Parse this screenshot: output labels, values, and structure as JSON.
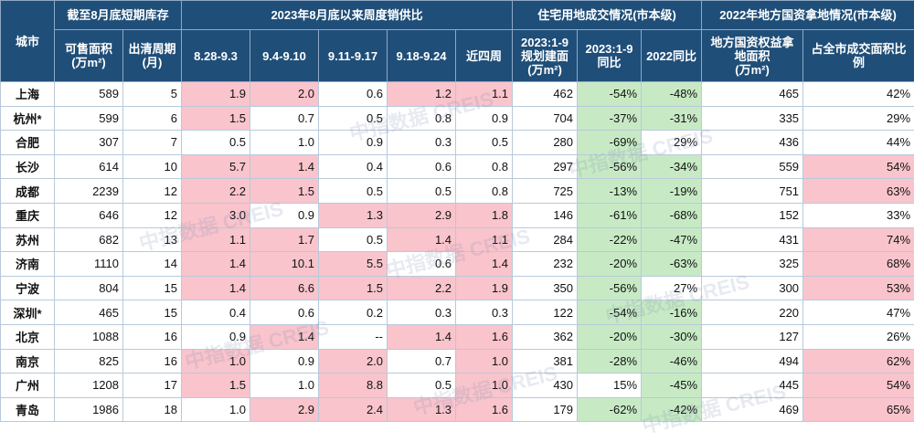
{
  "headers": {
    "city": "城市",
    "group_inventory": "截至8月底短期库存",
    "group_weekly": "2023年8月底以来周度销供比",
    "group_land": "住宅用地成交情况(市本级)",
    "group_state": "2022年地方国资拿地情况(市本级)",
    "available_area": "可售面积",
    "available_area_unit": "(万m²)",
    "clearance_cycle": "出清周期",
    "clearance_cycle_unit": "(月)",
    "week1": "8.28-9.3",
    "week2": "9.4-9.10",
    "week3": "9.11-9.17",
    "week4": "9.18-9.24",
    "recent4": "近四周",
    "land_area": "2023:1-9规划建面",
    "land_area_unit": "(万m²)",
    "land_yoy": "2023:1-9同比",
    "land_2022": "2022同比",
    "state_area": "地方国资权益拿地面积",
    "state_area_unit": "(万m²)",
    "state_share": "占全市成交面积比例"
  },
  "rows": [
    {
      "city": "上海",
      "area": "589",
      "cycle": "5",
      "w1": "1.9",
      "w2": "2.0",
      "w3": "0.6",
      "w4": "1.2",
      "r4": "1.1",
      "land": "462",
      "yoy": "-54%",
      "y22": "-48%",
      "sarea": "465",
      "share": "42%"
    },
    {
      "city": "杭州*",
      "area": "599",
      "cycle": "6",
      "w1": "1.5",
      "w2": "0.7",
      "w3": "0.5",
      "w4": "0.8",
      "r4": "0.9",
      "land": "704",
      "yoy": "-37%",
      "y22": "-31%",
      "sarea": "335",
      "share": "29%"
    },
    {
      "city": "合肥",
      "area": "307",
      "cycle": "7",
      "w1": "0.5",
      "w2": "1.0",
      "w3": "0.9",
      "w4": "0.3",
      "r4": "0.5",
      "land": "280",
      "yoy": "-69%",
      "y22": "29%",
      "sarea": "436",
      "share": "44%"
    },
    {
      "city": "长沙",
      "area": "614",
      "cycle": "10",
      "w1": "5.7",
      "w2": "1.4",
      "w3": "0.4",
      "w4": "0.6",
      "r4": "0.8",
      "land": "297",
      "yoy": "-56%",
      "y22": "-34%",
      "sarea": "559",
      "share": "54%"
    },
    {
      "city": "成都",
      "area": "2239",
      "cycle": "12",
      "w1": "2.2",
      "w2": "1.5",
      "w3": "0.5",
      "w4": "0.5",
      "r4": "0.8",
      "land": "725",
      "yoy": "-13%",
      "y22": "-19%",
      "sarea": "751",
      "share": "63%"
    },
    {
      "city": "重庆",
      "area": "646",
      "cycle": "12",
      "w1": "3.0",
      "w2": "0.9",
      "w3": "1.3",
      "w4": "2.9",
      "r4": "1.8",
      "land": "146",
      "yoy": "-61%",
      "y22": "-68%",
      "sarea": "152",
      "share": "33%"
    },
    {
      "city": "苏州",
      "area": "682",
      "cycle": "13",
      "w1": "1.1",
      "w2": "1.7",
      "w3": "0.5",
      "w4": "1.4",
      "r4": "1.1",
      "land": "284",
      "yoy": "-22%",
      "y22": "-47%",
      "sarea": "431",
      "share": "74%"
    },
    {
      "city": "济南",
      "area": "1110",
      "cycle": "14",
      "w1": "1.4",
      "w2": "10.1",
      "w3": "5.5",
      "w4": "0.6",
      "r4": "1.4",
      "land": "232",
      "yoy": "-20%",
      "y22": "-63%",
      "sarea": "325",
      "share": "68%"
    },
    {
      "city": "宁波",
      "area": "804",
      "cycle": "15",
      "w1": "1.4",
      "w2": "6.6",
      "w3": "1.5",
      "w4": "2.2",
      "r4": "1.9",
      "land": "350",
      "yoy": "-56%",
      "y22": "27%",
      "sarea": "300",
      "share": "53%"
    },
    {
      "city": "深圳*",
      "area": "465",
      "cycle": "15",
      "w1": "0.4",
      "w2": "0.6",
      "w3": "0.2",
      "w4": "0.3",
      "r4": "0.3",
      "land": "122",
      "yoy": "-54%",
      "y22": "-16%",
      "sarea": "220",
      "share": "47%"
    },
    {
      "city": "北京",
      "area": "1088",
      "cycle": "16",
      "w1": "0.9",
      "w2": "1.4",
      "w3": "--",
      "w4": "1.4",
      "r4": "1.6",
      "land": "362",
      "yoy": "-20%",
      "y22": "-30%",
      "sarea": "127",
      "share": "26%"
    },
    {
      "city": "南京",
      "area": "825",
      "cycle": "16",
      "w1": "1.0",
      "w2": "0.9",
      "w3": "2.0",
      "w4": "0.7",
      "r4": "1.0",
      "land": "381",
      "yoy": "-28%",
      "y22": "-46%",
      "sarea": "494",
      "share": "62%"
    },
    {
      "city": "广州",
      "area": "1208",
      "cycle": "17",
      "w1": "1.5",
      "w2": "1.0",
      "w3": "8.8",
      "w4": "0.5",
      "r4": "1.0",
      "land": "430",
      "yoy": "15%",
      "y22": "-45%",
      "sarea": "445",
      "share": "54%"
    },
    {
      "city": "青岛",
      "area": "1986",
      "cycle": "18",
      "w1": "1.0",
      "w2": "2.9",
      "w3": "2.4",
      "w4": "1.3",
      "r4": "1.6",
      "land": "179",
      "yoy": "-62%",
      "y22": "-42%",
      "sarea": "469",
      "share": "65%"
    }
  ],
  "highlight": {
    "w1": [
      "上海",
      "杭州*",
      "长沙",
      "成都",
      "重庆",
      "苏州",
      "济南",
      "宁波",
      "南京",
      "广州"
    ],
    "w2": [
      "上海",
      "长沙",
      "成都",
      "苏州",
      "济南",
      "宁波",
      "北京",
      "青岛"
    ],
    "w3": [
      "重庆",
      "济南",
      "宁波",
      "南京",
      "广州",
      "青岛"
    ],
    "w4": [
      "上海",
      "重庆",
      "苏州",
      "宁波",
      "北京",
      "青岛"
    ],
    "r4": [
      "上海",
      "重庆",
      "苏州",
      "济南",
      "宁波",
      "北京",
      "南京",
      "广州",
      "青岛"
    ],
    "share": [
      "长沙",
      "成都",
      "苏州",
      "济南",
      "宁波",
      "南京",
      "广州",
      "青岛"
    ]
  },
  "colors": {
    "header": "#1f4e78",
    "pink": "#f9c4cc",
    "green": "#c7eac5"
  },
  "watermark_text": "中指数据 CREIS"
}
